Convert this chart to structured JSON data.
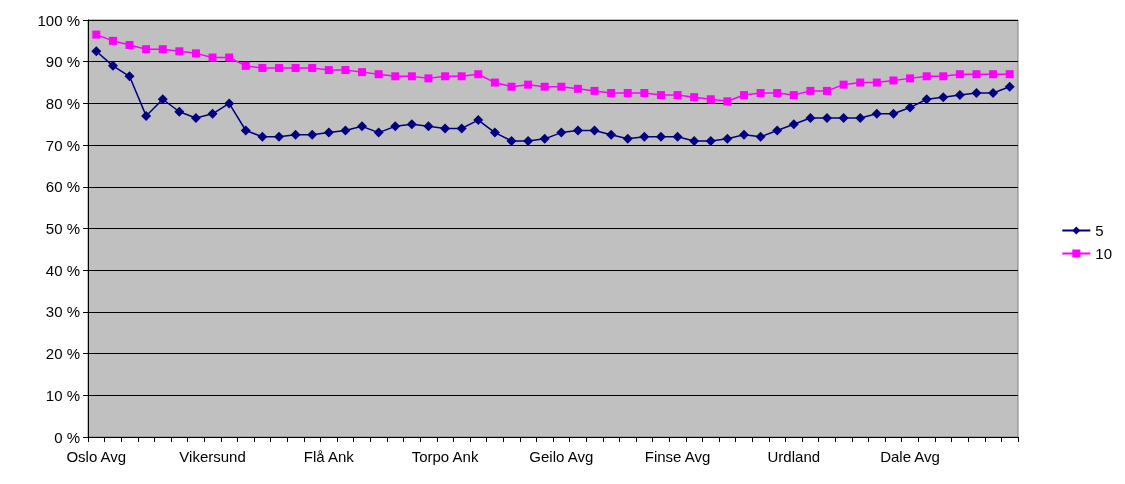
{
  "chart_data": {
    "type": "line",
    "categories": [
      "Oslo Avg",
      null,
      null,
      null,
      null,
      null,
      null,
      "Vikersund",
      null,
      null,
      null,
      null,
      null,
      null,
      "Flå Ank",
      null,
      null,
      null,
      null,
      null,
      null,
      "Torpo Ank",
      null,
      null,
      null,
      null,
      null,
      null,
      "Geilo Avg",
      null,
      null,
      null,
      null,
      null,
      null,
      "Finse Avg",
      null,
      null,
      null,
      null,
      null,
      null,
      "Urdland",
      null,
      null,
      null,
      null,
      null,
      null,
      "Dale Avg",
      null,
      null,
      null,
      null,
      null,
      null
    ],
    "series": [
      {
        "name": "5",
        "color": "#000080",
        "marker": "diamond",
        "values": [
          92.5,
          89,
          86.5,
          77,
          81,
          78,
          76.5,
          77.5,
          80,
          73.5,
          72,
          72,
          72.5,
          72.5,
          73,
          73.5,
          74.5,
          73,
          74.5,
          75,
          74.5,
          74,
          74,
          76,
          73,
          71,
          71,
          71.5,
          73,
          73.5,
          73.5,
          72.5,
          71.5,
          72,
          72,
          72,
          71,
          71,
          71.5,
          72.5,
          72,
          73.5,
          75,
          76.5,
          76.5,
          76.5,
          76.5,
          77.5,
          77.5,
          79,
          81,
          81.5,
          82,
          82.5,
          82.5,
          84
        ]
      },
      {
        "name": "10",
        "color": "#ff00ff",
        "marker": "square",
        "values": [
          96.5,
          95,
          94,
          93,
          93,
          92.5,
          92,
          91,
          91,
          89,
          88.5,
          88.5,
          88.5,
          88.5,
          88,
          88,
          87.5,
          87,
          86.5,
          86.5,
          86,
          86.5,
          86.5,
          87,
          85,
          84,
          84.5,
          84,
          84,
          83.5,
          83,
          82.5,
          82.5,
          82.5,
          82,
          82,
          81.5,
          81,
          80.5,
          82,
          82.5,
          82.5,
          82,
          83,
          83,
          84.5,
          85,
          85,
          85.5,
          86,
          86.5,
          86.5,
          87,
          87,
          87,
          87
        ]
      }
    ],
    "ylim": [
      0,
      100
    ],
    "yticks": [
      {
        "value": 0,
        "label": "0 %"
      },
      {
        "value": 10,
        "label": "10 %"
      },
      {
        "value": 20,
        "label": "20 %"
      },
      {
        "value": 30,
        "label": "30 %"
      },
      {
        "value": 40,
        "label": "40 %"
      },
      {
        "value": 50,
        "label": "50 %"
      },
      {
        "value": 60,
        "label": "60 %"
      },
      {
        "value": 70,
        "label": "70 %"
      },
      {
        "value": 80,
        "label": "80 %"
      },
      {
        "value": 90,
        "label": "90 %"
      },
      {
        "value": 100,
        "label": "100 %"
      }
    ],
    "grid": "y",
    "legend": "right",
    "line_style": "solid"
  }
}
